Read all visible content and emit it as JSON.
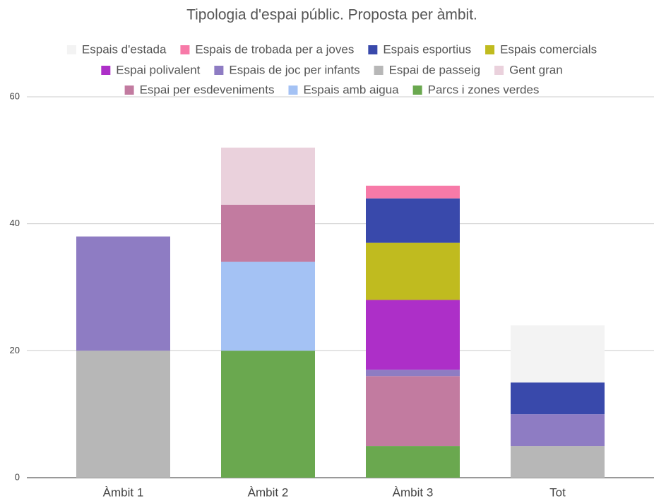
{
  "chart_data": {
    "type": "stacked_bar",
    "title": "Tipologia d'espai públic. Proposta per àmbit.",
    "categories": [
      "Àmbit 1",
      "Àmbit 2",
      "Àmbit 3",
      "Tot"
    ],
    "series": [
      {
        "name": "Espais d'estada",
        "color": "#f3f3f3",
        "values": [
          0,
          0,
          0,
          9
        ]
      },
      {
        "name": "Espais de trobada per a joves",
        "color": "#f77aa8",
        "values": [
          0,
          0,
          2,
          0
        ]
      },
      {
        "name": "Espais esportius",
        "color": "#3949ab",
        "values": [
          0,
          0,
          7,
          5
        ]
      },
      {
        "name": "Espais comercials",
        "color": "#c0bb1f",
        "values": [
          0,
          0,
          9,
          0
        ]
      },
      {
        "name": "Espai polivalent",
        "color": "#ad2fc8",
        "values": [
          0,
          0,
          11,
          0
        ]
      },
      {
        "name": "Espais de joc per infants",
        "color": "#8e7cc3",
        "values": [
          18,
          0,
          1,
          5
        ]
      },
      {
        "name": "Espai de passeig",
        "color": "#b7b7b7",
        "values": [
          20,
          0,
          0,
          5
        ]
      },
      {
        "name": "Gent gran",
        "color": "#ead1dc",
        "values": [
          0,
          9,
          0,
          0
        ]
      },
      {
        "name": "Espai per esdeveniments",
        "color": "#c27ba0",
        "values": [
          0,
          9,
          11,
          0
        ]
      },
      {
        "name": "Espais amb aigua",
        "color": "#a4c2f4",
        "values": [
          0,
          14,
          0,
          0
        ]
      },
      {
        "name": "Parcs i zones verdes",
        "color": "#6aa84f",
        "values": [
          0,
          20,
          5,
          0
        ]
      }
    ],
    "ylim": [
      0,
      60
    ],
    "yticks": [
      0,
      20,
      40,
      60
    ],
    "grid": true,
    "legend": "top"
  }
}
